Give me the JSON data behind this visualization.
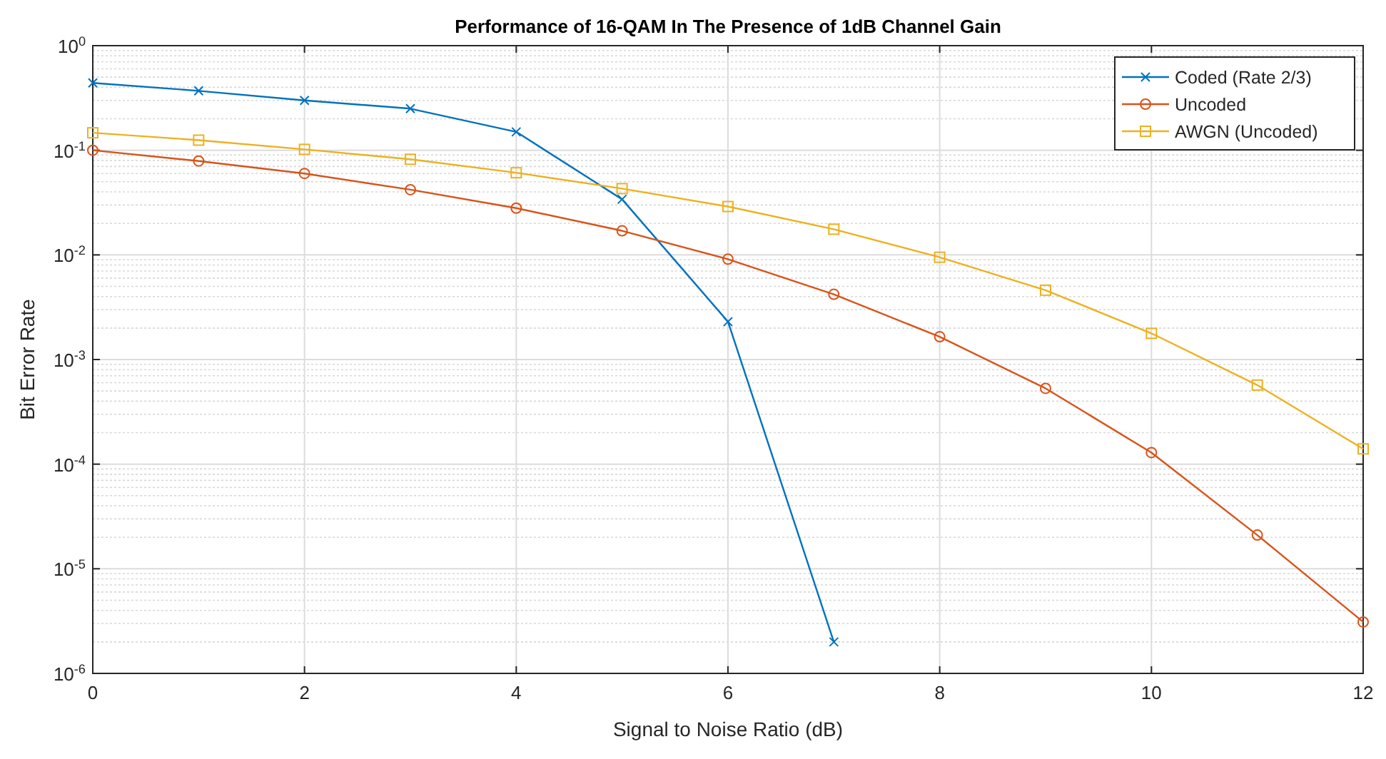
{
  "chart_data": {
    "type": "line",
    "title": "Performance of 16-QAM In The Presence of 1dB Channel Gain",
    "xlabel": "Signal to Noise Ratio (dB)",
    "ylabel": "Bit Error Rate",
    "log": "y",
    "grid": true,
    "legend": "top right",
    "line_style": "solid",
    "xlim": [
      0,
      12
    ],
    "xticks": [
      0,
      2,
      4,
      6,
      8,
      10,
      12
    ],
    "ylim": [
      1e-06,
      1
    ],
    "yticks": [
      {
        "value": 1e-06,
        "label": "10$^{-6}$"
      },
      {
        "value": 1e-05,
        "label": "10$^{-5}$"
      },
      {
        "value": 0.0001,
        "label": "10$^{-4}$"
      },
      {
        "value": 0.001,
        "label": "10$^{-3}$"
      },
      {
        "value": 0.01,
        "label": "10$^{-2}$"
      },
      {
        "value": 0.1,
        "label": "10$^{-1}$"
      },
      {
        "value": 1,
        "label": "10$^{0}$"
      }
    ],
    "series": [
      {
        "name": "Coded (Rate 2/3)",
        "color": "#0072bd",
        "marker": "cross",
        "x": [
          0,
          1,
          2,
          3,
          4,
          5,
          6,
          7
        ],
        "values": [
          0.44,
          0.37,
          0.3,
          0.25,
          0.15,
          0.034,
          0.0023,
          2e-06
        ]
      },
      {
        "name": "Uncoded",
        "color": "#d95319",
        "marker": "circle",
        "x": [
          0,
          1,
          2,
          3,
          4,
          5,
          6,
          7,
          8,
          9,
          10,
          11,
          12
        ],
        "values": [
          0.1,
          0.079,
          0.06,
          0.042,
          0.028,
          0.017,
          0.0091,
          0.0042,
          0.00165,
          0.00053,
          0.000129,
          2.1e-05,
          3.1e-06
        ]
      },
      {
        "name": "AWGN (Uncoded)",
        "color": "#edb120",
        "marker": "square",
        "x": [
          0,
          1,
          2,
          3,
          4,
          5,
          6,
          7,
          8,
          9,
          10,
          11,
          12
        ],
        "values": [
          0.147,
          0.125,
          0.102,
          0.082,
          0.061,
          0.043,
          0.029,
          0.0176,
          0.0095,
          0.0046,
          0.00178,
          0.00057,
          0.00014
        ]
      }
    ]
  }
}
